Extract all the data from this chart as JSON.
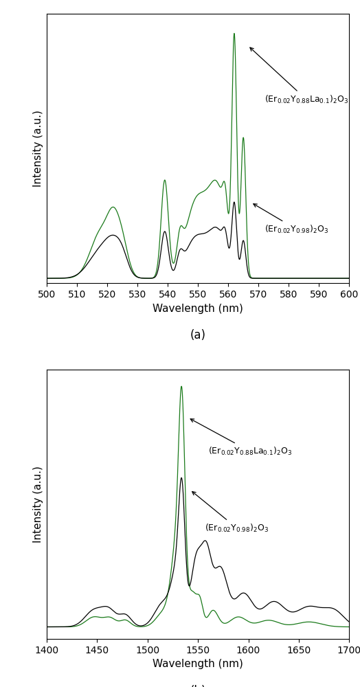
{
  "panel_a": {
    "xmin": 500,
    "xmax": 600,
    "xticks": [
      500,
      510,
      520,
      530,
      540,
      550,
      560,
      570,
      580,
      590,
      600
    ],
    "xlabel": "Wavelength (nm)",
    "ylabel": "Intensity (a.u.)"
  },
  "panel_b": {
    "xmin": 1400,
    "xmax": 1700,
    "xticks": [
      1400,
      1450,
      1500,
      1550,
      1600,
      1650,
      1700
    ],
    "xlabel": "Wavelength (nm)",
    "ylabel": "Intensity (a.u.)"
  },
  "label_la": "(Er$_{0.02}$Y$_{0.88}$La$_{0.1}$)$_2$O$_3$",
  "label_y": "(Er$_{0.02}$Y$_{0.98}$)$_2$O$_3$",
  "line_color_green": "#1a7a1a",
  "line_color_black": "#000000",
  "bg_color": "#ffffff",
  "fontsize_label": 11,
  "fontsize_tick": 10,
  "fontsize_annot": 9,
  "fontsize_subfig": 12,
  "linewidth": 0.9
}
